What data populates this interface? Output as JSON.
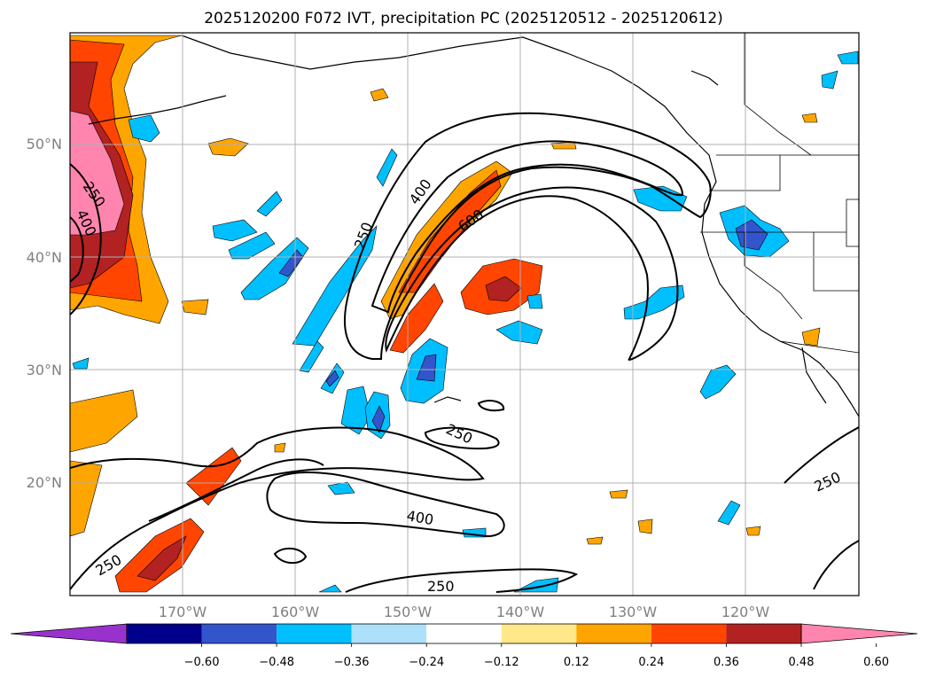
{
  "title": "2025120200 F072 IVT, precipitation PC (2025120512 - 2025120612)",
  "map": {
    "lon_labels": [
      "170°W",
      "160°W",
      "150°W",
      "140°W",
      "130°W",
      "120°W"
    ],
    "lat_labels": [
      "50°N",
      "40°N",
      "30°N",
      "20°N"
    ],
    "ivt_contour_labels": [
      "250",
      "400",
      "250",
      "400",
      "600",
      "250",
      "400",
      "250",
      "250",
      "250"
    ]
  },
  "colorbar": {
    "colors": [
      "#9932CC",
      "#00008B",
      "#3355CC",
      "#00BFFF",
      "#ADE1FA",
      "#FFFFFF",
      "#FFE88A",
      "#FFA500",
      "#FF4500",
      "#B22222",
      "#FF85AE"
    ],
    "tick_labels": [
      "−0.60",
      "−0.48",
      "−0.36",
      "−0.24",
      "−0.12",
      "0.12",
      "0.24",
      "0.36",
      "0.48",
      "0.60"
    ]
  }
}
